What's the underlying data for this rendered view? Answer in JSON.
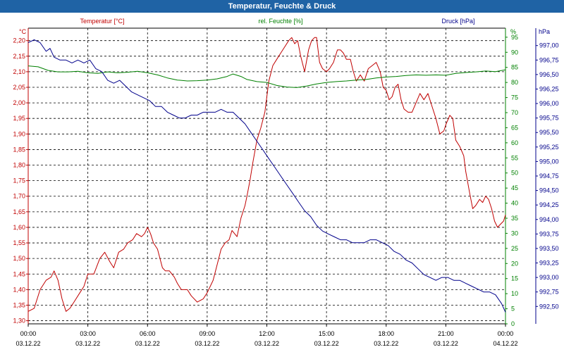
{
  "chart_data": {
    "type": "line",
    "title": "Temperatur, Feuchte & Druck",
    "x": {
      "range_hours": [
        0,
        24
      ],
      "ticks": [
        {
          "h": 0,
          "time": "00:00",
          "date": "03.12.22"
        },
        {
          "h": 3,
          "time": "03:00",
          "date": "03.12.22"
        },
        {
          "h": 6,
          "time": "06:00",
          "date": "03.12.22"
        },
        {
          "h": 9,
          "time": "09:00",
          "date": "03.12.22"
        },
        {
          "h": 12,
          "time": "12:00",
          "date": "03.12.22"
        },
        {
          "h": 15,
          "time": "15:00",
          "date": "03.12.22"
        },
        {
          "h": 18,
          "time": "18:00",
          "date": "03.12.22"
        },
        {
          "h": 21,
          "time": "21:00",
          "date": "03.12.22"
        },
        {
          "h": 24,
          "time": "00:00",
          "date": "04.12.22"
        }
      ]
    },
    "axes": {
      "temperature": {
        "label": "Temperatur [°C]",
        "unit": "°C",
        "color": "#c00000",
        "range": [
          1.29,
          2.24
        ],
        "step": 0.05,
        "decimals": 2,
        "ticks": [
          "1,30",
          "1,35",
          "1,40",
          "1,45",
          "1,50",
          "1,55",
          "1,60",
          "1,65",
          "1,70",
          "1,75",
          "1,80",
          "1,85",
          "1,90",
          "1,95",
          "2,00",
          "2,05",
          "2,10",
          "2,15",
          "2,20"
        ]
      },
      "humidity": {
        "label": "rel. Feuchte [%]",
        "unit": "%",
        "color": "#008000",
        "range": [
          0,
          98
        ],
        "step": 5,
        "decimals": 0,
        "ticks": [
          "0",
          "5",
          "10",
          "15",
          "20",
          "25",
          "30",
          "35",
          "40",
          "45",
          "50",
          "55",
          "60",
          "65",
          "70",
          "75",
          "80",
          "85",
          "90",
          "95"
        ]
      },
      "pressure": {
        "label": "Druck [hPa]",
        "unit": "hPa",
        "color": "#00008b",
        "range": [
          992.2,
          997.3
        ],
        "step": 0.25,
        "decimals": 2,
        "ticks": [
          "992,50",
          "992,75",
          "993,00",
          "993,25",
          "993,50",
          "993,75",
          "994,00",
          "994,25",
          "994,50",
          "994,75",
          "995,00",
          "995,25",
          "995,50",
          "995,75",
          "996,00",
          "996,25",
          "996,50",
          "996,75",
          "997,00"
        ]
      }
    },
    "series": [
      {
        "name": "Temperatur",
        "axis": "temperature",
        "color": "#c00000",
        "points": [
          [
            0,
            1.33
          ],
          [
            0.3,
            1.34
          ],
          [
            0.6,
            1.4
          ],
          [
            0.9,
            1.43
          ],
          [
            1.15,
            1.44
          ],
          [
            1.3,
            1.46
          ],
          [
            1.5,
            1.43
          ],
          [
            1.7,
            1.37
          ],
          [
            1.9,
            1.33
          ],
          [
            2.1,
            1.34
          ],
          [
            2.3,
            1.36
          ],
          [
            2.6,
            1.39
          ],
          [
            2.8,
            1.41
          ],
          [
            3.0,
            1.45
          ],
          [
            3.3,
            1.45
          ],
          [
            3.6,
            1.5
          ],
          [
            3.85,
            1.52
          ],
          [
            4.1,
            1.49
          ],
          [
            4.3,
            1.47
          ],
          [
            4.55,
            1.52
          ],
          [
            4.8,
            1.53
          ],
          [
            5.0,
            1.55
          ],
          [
            5.25,
            1.56
          ],
          [
            5.45,
            1.58
          ],
          [
            5.7,
            1.57
          ],
          [
            5.85,
            1.58
          ],
          [
            6.0,
            1.6
          ],
          [
            6.15,
            1.58
          ],
          [
            6.3,
            1.55
          ],
          [
            6.5,
            1.53
          ],
          [
            6.75,
            1.47
          ],
          [
            6.9,
            1.46
          ],
          [
            7.1,
            1.46
          ],
          [
            7.35,
            1.44
          ],
          [
            7.5,
            1.42
          ],
          [
            7.7,
            1.4
          ],
          [
            8.0,
            1.4
          ],
          [
            8.2,
            1.38
          ],
          [
            8.5,
            1.36
          ],
          [
            8.8,
            1.37
          ],
          [
            9.0,
            1.39
          ],
          [
            9.3,
            1.43
          ],
          [
            9.5,
            1.48
          ],
          [
            9.7,
            1.53
          ],
          [
            9.9,
            1.55
          ],
          [
            10.1,
            1.56
          ],
          [
            10.25,
            1.59
          ],
          [
            10.5,
            1.57
          ],
          [
            10.7,
            1.63
          ],
          [
            10.9,
            1.67
          ],
          [
            11.0,
            1.7
          ],
          [
            11.15,
            1.75
          ],
          [
            11.3,
            1.81
          ],
          [
            11.5,
            1.88
          ],
          [
            11.7,
            1.92
          ],
          [
            11.9,
            1.97
          ],
          [
            12.0,
            2.02
          ],
          [
            12.1,
            2.07
          ],
          [
            12.3,
            2.12
          ],
          [
            12.5,
            2.14
          ],
          [
            12.7,
            2.16
          ],
          [
            12.9,
            2.18
          ],
          [
            13.1,
            2.2
          ],
          [
            13.25,
            2.21
          ],
          [
            13.4,
            2.19
          ],
          [
            13.55,
            2.2
          ],
          [
            13.7,
            2.15
          ],
          [
            13.9,
            2.1
          ],
          [
            14.1,
            2.17
          ],
          [
            14.25,
            2.2
          ],
          [
            14.4,
            2.21
          ],
          [
            14.5,
            2.21
          ],
          [
            14.65,
            2.13
          ],
          [
            14.8,
            2.11
          ],
          [
            15.0,
            2.1
          ],
          [
            15.15,
            2.11
          ],
          [
            15.35,
            2.13
          ],
          [
            15.55,
            2.17
          ],
          [
            15.7,
            2.17
          ],
          [
            15.85,
            2.16
          ],
          [
            16.0,
            2.14
          ],
          [
            16.2,
            2.14
          ],
          [
            16.35,
            2.1
          ],
          [
            16.5,
            2.07
          ],
          [
            16.7,
            2.09
          ],
          [
            16.9,
            2.07
          ],
          [
            17.1,
            2.11
          ],
          [
            17.3,
            2.12
          ],
          [
            17.5,
            2.13
          ],
          [
            17.7,
            2.1
          ],
          [
            17.85,
            2.05
          ],
          [
            18.0,
            2.04
          ],
          [
            18.15,
            2.01
          ],
          [
            18.3,
            2.02
          ],
          [
            18.45,
            2.05
          ],
          [
            18.6,
            2.06
          ],
          [
            18.75,
            2.01
          ],
          [
            18.9,
            1.98
          ],
          [
            19.1,
            1.97
          ],
          [
            19.3,
            1.97
          ],
          [
            19.5,
            2.0
          ],
          [
            19.7,
            2.03
          ],
          [
            19.9,
            2.01
          ],
          [
            20.1,
            2.03
          ],
          [
            20.3,
            1.99
          ],
          [
            20.5,
            1.95
          ],
          [
            20.7,
            1.9
          ],
          [
            20.9,
            1.91
          ],
          [
            21.0,
            1.93
          ],
          [
            21.2,
            1.96
          ],
          [
            21.35,
            1.95
          ],
          [
            21.5,
            1.88
          ],
          [
            21.7,
            1.86
          ],
          [
            21.9,
            1.83
          ],
          [
            22.0,
            1.78
          ],
          [
            22.2,
            1.71
          ],
          [
            22.35,
            1.66
          ],
          [
            22.5,
            1.67
          ],
          [
            22.7,
            1.69
          ],
          [
            22.85,
            1.68
          ],
          [
            23.0,
            1.7
          ],
          [
            23.15,
            1.69
          ],
          [
            23.3,
            1.66
          ],
          [
            23.45,
            1.62
          ],
          [
            23.6,
            1.6
          ],
          [
            23.75,
            1.61
          ],
          [
            23.9,
            1.62
          ],
          [
            24.0,
            1.64
          ]
        ]
      },
      {
        "name": "rel. Feuchte",
        "axis": "humidity",
        "color": "#008000",
        "points": [
          [
            0,
            85.5
          ],
          [
            0.5,
            85.2
          ],
          [
            1,
            84
          ],
          [
            1.5,
            83.5
          ],
          [
            2,
            83.5
          ],
          [
            2.5,
            83.7
          ],
          [
            3,
            83.2
          ],
          [
            3.5,
            83
          ],
          [
            4,
            83.5
          ],
          [
            4.5,
            83.2
          ],
          [
            5,
            83.4
          ],
          [
            5.5,
            83.7
          ],
          [
            6,
            83.2
          ],
          [
            6.5,
            82.5
          ],
          [
            7,
            81.5
          ],
          [
            7.5,
            80.8
          ],
          [
            8,
            80.5
          ],
          [
            8.5,
            80.6
          ],
          [
            9,
            80.8
          ],
          [
            9.5,
            81.2
          ],
          [
            10,
            82
          ],
          [
            10.3,
            82.8
          ],
          [
            10.7,
            82
          ],
          [
            11,
            81
          ],
          [
            11.5,
            80.3
          ],
          [
            12,
            80
          ],
          [
            12.5,
            79
          ],
          [
            13,
            78.5
          ],
          [
            13.5,
            78.3
          ],
          [
            14,
            78.8
          ],
          [
            14.5,
            79.5
          ],
          [
            15,
            80
          ],
          [
            15.5,
            80.3
          ],
          [
            16,
            80.5
          ],
          [
            16.5,
            80.8
          ],
          [
            17,
            81
          ],
          [
            17.5,
            81.5
          ],
          [
            18,
            81.8
          ],
          [
            18.5,
            82
          ],
          [
            19,
            82.3
          ],
          [
            19.5,
            82.5
          ],
          [
            20,
            82.4
          ],
          [
            20.5,
            82.5
          ],
          [
            21,
            82.4
          ],
          [
            21.5,
            83
          ],
          [
            22,
            83.3
          ],
          [
            22.5,
            83.5
          ],
          [
            23,
            83.8
          ],
          [
            23.5,
            83.6
          ],
          [
            24,
            84.2
          ]
        ]
      },
      {
        "name": "Druck",
        "axis": "pressure",
        "color": "#00008b",
        "points": [
          [
            0,
            997.05
          ],
          [
            0.3,
            997.1
          ],
          [
            0.6,
            997.05
          ],
          [
            0.9,
            996.9
          ],
          [
            1.1,
            996.95
          ],
          [
            1.3,
            996.8
          ],
          [
            1.6,
            996.75
          ],
          [
            1.9,
            996.75
          ],
          [
            2.2,
            996.7
          ],
          [
            2.5,
            996.75
          ],
          [
            2.8,
            996.7
          ],
          [
            3.1,
            996.75
          ],
          [
            3.4,
            996.6
          ],
          [
            3.7,
            996.55
          ],
          [
            4.0,
            996.4
          ],
          [
            4.3,
            996.35
          ],
          [
            4.6,
            996.4
          ],
          [
            4.9,
            996.3
          ],
          [
            5.2,
            996.2
          ],
          [
            5.5,
            996.15
          ],
          [
            5.8,
            996.1
          ],
          [
            6.1,
            996.05
          ],
          [
            6.4,
            995.95
          ],
          [
            6.7,
            995.95
          ],
          [
            7.0,
            995.85
          ],
          [
            7.3,
            995.8
          ],
          [
            7.6,
            995.75
          ],
          [
            7.9,
            995.75
          ],
          [
            8.2,
            995.8
          ],
          [
            8.5,
            995.8
          ],
          [
            8.8,
            995.85
          ],
          [
            9.1,
            995.85
          ],
          [
            9.4,
            995.85
          ],
          [
            9.7,
            995.9
          ],
          [
            10.0,
            995.85
          ],
          [
            10.3,
            995.85
          ],
          [
            10.6,
            995.75
          ],
          [
            10.9,
            995.65
          ],
          [
            11.2,
            995.5
          ],
          [
            11.5,
            995.35
          ],
          [
            11.8,
            995.2
          ],
          [
            12.1,
            995.05
          ],
          [
            12.4,
            994.9
          ],
          [
            12.7,
            994.75
          ],
          [
            13.0,
            994.6
          ],
          [
            13.3,
            994.45
          ],
          [
            13.6,
            994.3
          ],
          [
            13.9,
            994.15
          ],
          [
            14.2,
            994.05
          ],
          [
            14.5,
            993.9
          ],
          [
            14.8,
            993.8
          ],
          [
            15.1,
            993.75
          ],
          [
            15.4,
            993.7
          ],
          [
            15.7,
            993.65
          ],
          [
            16.0,
            993.65
          ],
          [
            16.3,
            993.6
          ],
          [
            16.6,
            993.6
          ],
          [
            16.9,
            993.6
          ],
          [
            17.2,
            993.65
          ],
          [
            17.5,
            993.65
          ],
          [
            17.8,
            993.6
          ],
          [
            18.1,
            993.55
          ],
          [
            18.4,
            993.45
          ],
          [
            18.7,
            993.4
          ],
          [
            19.0,
            993.3
          ],
          [
            19.3,
            993.25
          ],
          [
            19.6,
            993.15
          ],
          [
            19.9,
            993.05
          ],
          [
            20.2,
            993.0
          ],
          [
            20.5,
            992.95
          ],
          [
            20.8,
            993.0
          ],
          [
            21.1,
            993.0
          ],
          [
            21.4,
            992.95
          ],
          [
            21.7,
            992.95
          ],
          [
            22.0,
            992.9
          ],
          [
            22.3,
            992.85
          ],
          [
            22.6,
            992.8
          ],
          [
            22.9,
            992.75
          ],
          [
            23.2,
            992.75
          ],
          [
            23.5,
            992.7
          ],
          [
            23.8,
            992.55
          ],
          [
            24.0,
            992.4
          ]
        ]
      }
    ]
  }
}
